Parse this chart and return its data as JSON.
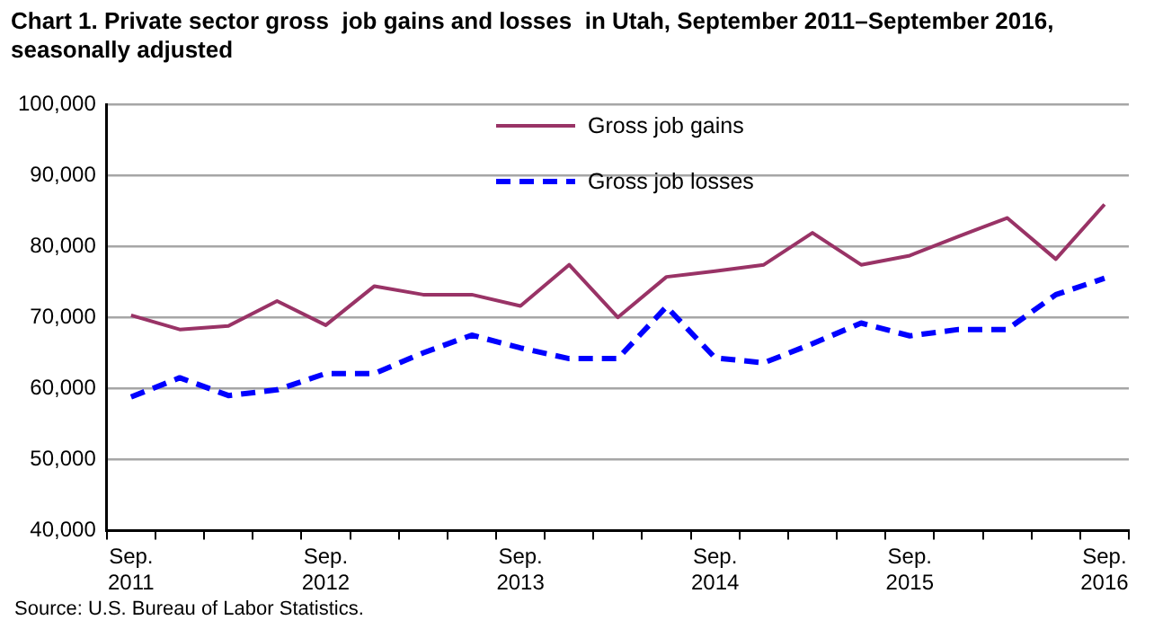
{
  "chart_data": {
    "type": "line",
    "title": "Chart 1. Private sector gross  job gains and losses  in Utah, September 2011–September 2016, seasonally adjusted",
    "categories": [
      "Sep. 2011",
      null,
      null,
      null,
      "Sep. 2012",
      null,
      null,
      null,
      "Sep. 2013",
      null,
      null,
      null,
      "Sep. 2014",
      null,
      null,
      null,
      "Sep. 2015",
      null,
      null,
      null,
      "Sep. 2016"
    ],
    "series": [
      {
        "name": "Gross job gains",
        "color": "#993366",
        "line_style": "solid",
        "values": [
          70300,
          68300,
          68800,
          72300,
          68900,
          74400,
          73200,
          73200,
          71600,
          77400,
          70000,
          75700,
          76500,
          77400,
          81900,
          77400,
          78700,
          81400,
          84000,
          78200,
          85900
        ]
      },
      {
        "name": "Gross job losses",
        "color": "#0000ff",
        "line_style": "dashed",
        "values": [
          58800,
          61500,
          59000,
          59800,
          62100,
          62100,
          65000,
          67500,
          65700,
          64200,
          64200,
          71500,
          64300,
          63600,
          66300,
          69200,
          67400,
          68300,
          68300,
          73200,
          75500
        ]
      }
    ],
    "ylim": [
      40000,
      100000
    ],
    "yticks": [
      {
        "value": 40000,
        "label": "40,000"
      },
      {
        "value": 50000,
        "label": "50,000"
      },
      {
        "value": 60000,
        "label": "60,000"
      },
      {
        "value": 70000,
        "label": "70,000"
      },
      {
        "value": 80000,
        "label": "80,000"
      },
      {
        "value": 90000,
        "label": "90,000"
      },
      {
        "value": 100000,
        "label": "100,000"
      }
    ],
    "grid": "y",
    "legend": "top",
    "marker": "none",
    "annotations": [
      "Source: U.S. Bureau of Labor Statistics."
    ]
  }
}
